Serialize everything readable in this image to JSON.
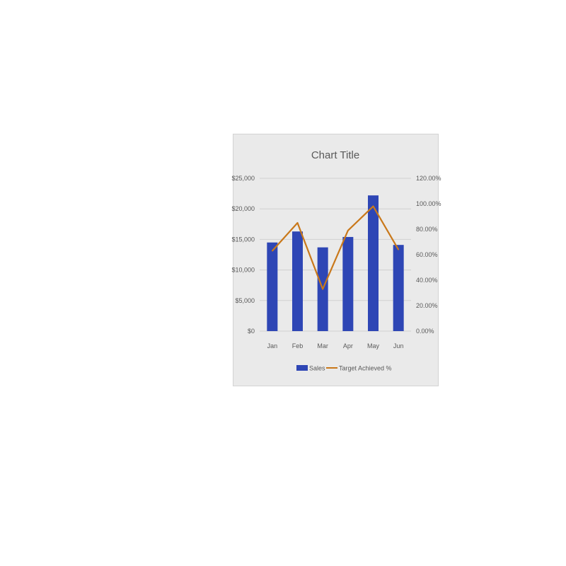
{
  "chart_data": {
    "type": "bar",
    "title": "Chart Title",
    "categories": [
      "Jan",
      "Feb",
      "Mar",
      "Apr",
      "May",
      "Jun"
    ],
    "series": [
      {
        "name": "Sales",
        "type": "bar",
        "axis": "left",
        "color": "#2e46b5",
        "values": [
          14500,
          16300,
          13700,
          15400,
          22200,
          14100
        ]
      },
      {
        "name": "Target Achieved %",
        "type": "line",
        "axis": "right",
        "color": "#c9781a",
        "values": [
          0.63,
          0.85,
          0.33,
          0.79,
          0.98,
          0.64
        ]
      }
    ],
    "y_left": {
      "min": 0,
      "max": 25000,
      "ticks": [
        "$0",
        "$5,000",
        "$10,000",
        "$15,000",
        "$20,000",
        "$25,000"
      ],
      "tick_values": [
        0,
        5000,
        10000,
        15000,
        20000,
        25000
      ]
    },
    "y_right": {
      "min": 0,
      "max": 1.2,
      "ticks": [
        "0.00%",
        "20.00%",
        "40.00%",
        "60.00%",
        "80.00%",
        "100.00%",
        "120.00%"
      ],
      "tick_values": [
        0,
        0.2,
        0.4,
        0.6,
        0.8,
        1.0,
        1.2
      ]
    },
    "grid": true,
    "legend": "bottom",
    "background": "#eaeaea"
  }
}
